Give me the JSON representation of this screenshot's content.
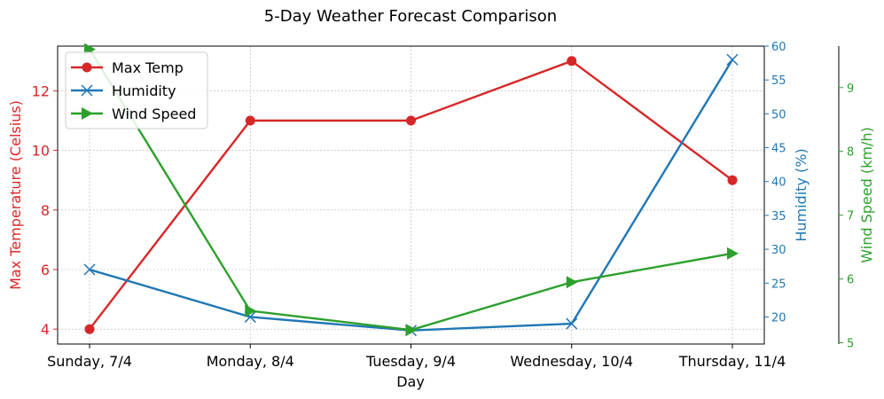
{
  "chart_data": {
    "type": "line",
    "title": "5-Day Weather Forecast Comparison",
    "xlabel": "Day",
    "categories": [
      "Sunday, 7/4",
      "Monday, 8/4",
      "Tuesday, 9/4",
      "Wednesday, 10/4",
      "Thursday, 11/4"
    ],
    "axes": [
      {
        "id": "temp",
        "label": "Max Temperature (Celsius)",
        "ylim": [
          3.5,
          13.5
        ],
        "ticks": [
          4,
          6,
          8,
          10,
          12
        ],
        "color": "#d62728",
        "side": "left"
      },
      {
        "id": "humidity",
        "label": "Humidity (%)",
        "ylim": [
          16,
          60
        ],
        "ticks": [
          20,
          25,
          30,
          35,
          40,
          45,
          50,
          55,
          60
        ],
        "color": "#1f77b4",
        "side": "right"
      },
      {
        "id": "wind",
        "label": "Wind Speed (km/h)",
        "ylim": [
          4.98,
          9.65
        ],
        "ticks": [
          5,
          6,
          7,
          8,
          9
        ],
        "color": "#2ca02c",
        "side": "right-outer"
      }
    ],
    "series": [
      {
        "name": "Max Temp",
        "axis": "temp",
        "marker": "circle",
        "color": "#d62728",
        "values": [
          4,
          11,
          11,
          13,
          9
        ]
      },
      {
        "name": "Humidity",
        "axis": "humidity",
        "marker": "x",
        "color": "#1f77b4",
        "values": [
          27,
          20,
          18,
          19,
          58
        ]
      },
      {
        "name": "Wind Speed",
        "axis": "wind",
        "marker": "triangle-right",
        "color": "#2ca02c",
        "values": [
          9.6,
          5.5,
          5.2,
          5.95,
          6.4
        ]
      }
    ],
    "grid": true,
    "legend": "top-left"
  }
}
